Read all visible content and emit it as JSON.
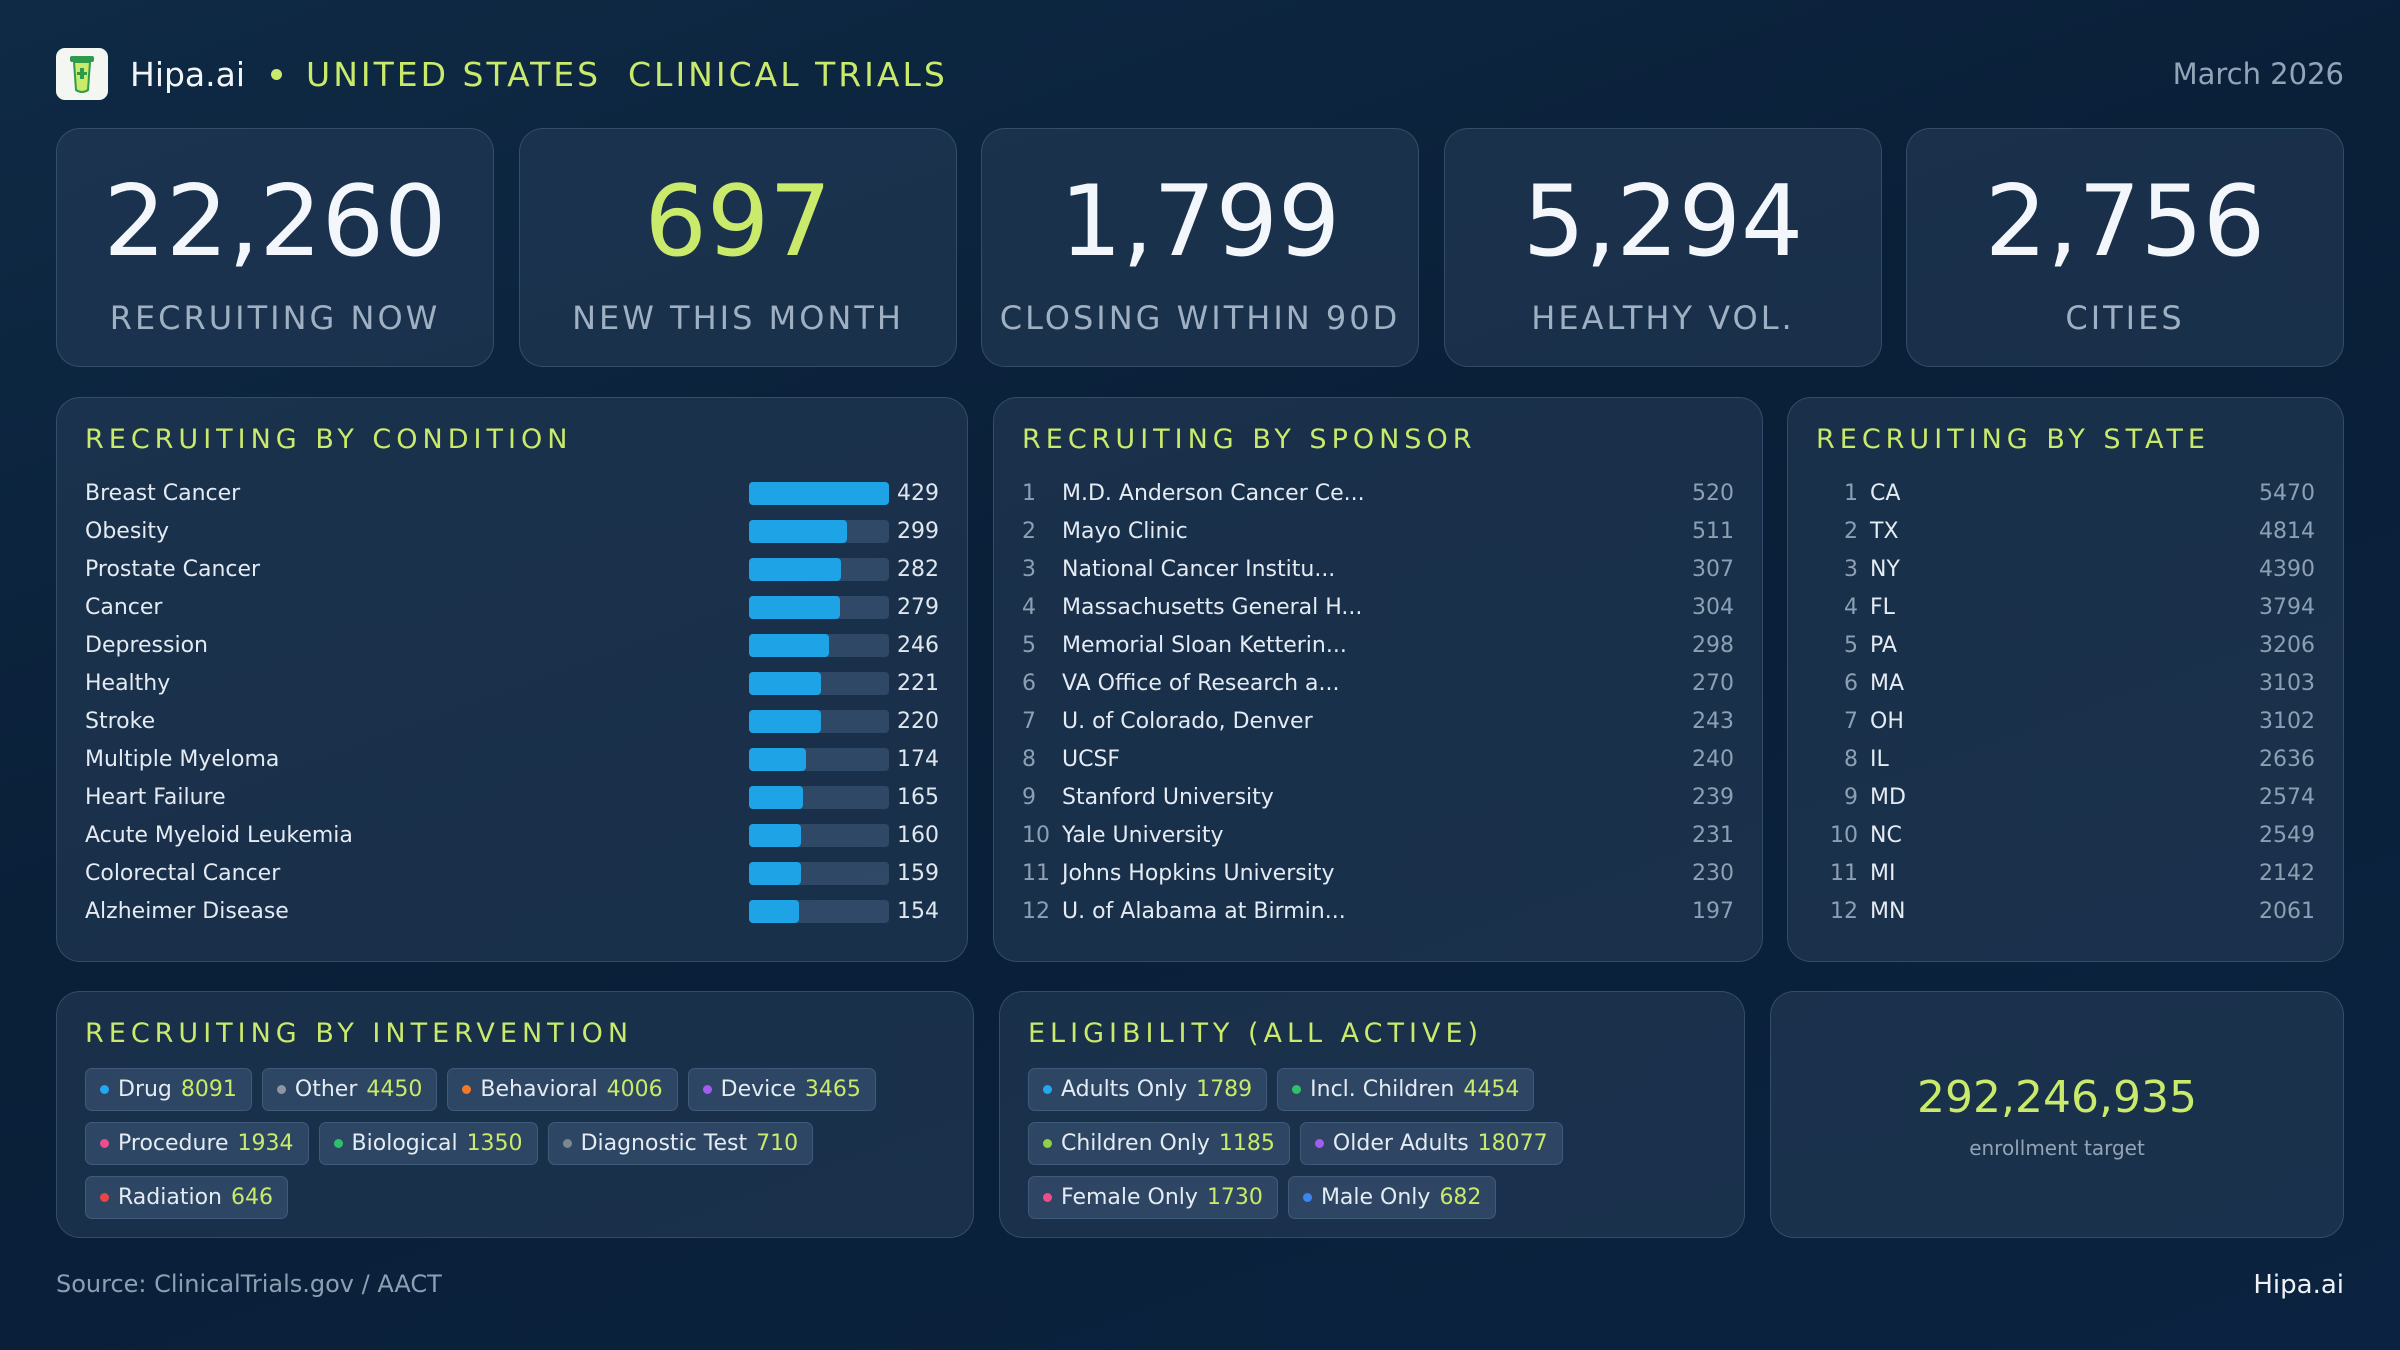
{
  "header": {
    "brand": "Hipa.ai",
    "title": "UNITED STATES  CLINICAL TRIALS",
    "date": "March 2026",
    "logo_icon": "flask-tube-icon"
  },
  "kpis": [
    {
      "value": "22,260",
      "label": "RECRUITING NOW"
    },
    {
      "value": "697",
      "label": "NEW THIS MONTH"
    },
    {
      "value": "1,799",
      "label": "CLOSING WITHIN 90D"
    },
    {
      "value": "5,294",
      "label": "HEALTHY VOL."
    },
    {
      "value": "2,756",
      "label": "CITIES"
    }
  ],
  "condition": {
    "title": "RECRUITING BY CONDITION",
    "bar_color": "#1ea4e6",
    "max": 429,
    "items": [
      {
        "name": "Breast Cancer",
        "value": 429
      },
      {
        "name": "Obesity",
        "value": 299
      },
      {
        "name": "Prostate Cancer",
        "value": 282
      },
      {
        "name": "Cancer",
        "value": 279
      },
      {
        "name": "Depression",
        "value": 246
      },
      {
        "name": "Healthy",
        "value": 221
      },
      {
        "name": "Stroke",
        "value": 220
      },
      {
        "name": "Multiple Myeloma",
        "value": 174
      },
      {
        "name": "Heart Failure",
        "value": 165
      },
      {
        "name": "Acute Myeloid Leukemia",
        "value": 160
      },
      {
        "name": "Colorectal Cancer",
        "value": 159
      },
      {
        "name": "Alzheimer Disease",
        "value": 154
      }
    ]
  },
  "sponsor": {
    "title": "RECRUITING BY SPONSOR",
    "items": [
      {
        "rank": "1",
        "name": "M.D. Anderson Cancer Ce...",
        "value": "520"
      },
      {
        "rank": "2",
        "name": "Mayo Clinic",
        "value": "511"
      },
      {
        "rank": "3",
        "name": "National Cancer Institu...",
        "value": "307"
      },
      {
        "rank": "4",
        "name": "Massachusetts General H...",
        "value": "304"
      },
      {
        "rank": "5",
        "name": "Memorial Sloan Ketterin...",
        "value": "298"
      },
      {
        "rank": "6",
        "name": "VA Office of Research a...",
        "value": "270"
      },
      {
        "rank": "7",
        "name": "U. of Colorado, Denver",
        "value": "243"
      },
      {
        "rank": "8",
        "name": "UCSF",
        "value": "240"
      },
      {
        "rank": "9",
        "name": "Stanford University",
        "value": "239"
      },
      {
        "rank": "10",
        "name": "Yale University",
        "value": "231"
      },
      {
        "rank": "11",
        "name": "Johns Hopkins University",
        "value": "230"
      },
      {
        "rank": "12",
        "name": "U. of Alabama at Birmin...",
        "value": "197"
      }
    ]
  },
  "state": {
    "title": "RECRUITING BY STATE",
    "items": [
      {
        "rank": "1",
        "name": "CA",
        "value": "5470"
      },
      {
        "rank": "2",
        "name": "TX",
        "value": "4814"
      },
      {
        "rank": "3",
        "name": "NY",
        "value": "4390"
      },
      {
        "rank": "4",
        "name": "FL",
        "value": "3794"
      },
      {
        "rank": "5",
        "name": "PA",
        "value": "3206"
      },
      {
        "rank": "6",
        "name": "MA",
        "value": "3103"
      },
      {
        "rank": "7",
        "name": "OH",
        "value": "3102"
      },
      {
        "rank": "8",
        "name": "IL",
        "value": "2636"
      },
      {
        "rank": "9",
        "name": "MD",
        "value": "2574"
      },
      {
        "rank": "10",
        "name": "NC",
        "value": "2549"
      },
      {
        "rank": "11",
        "name": "MI",
        "value": "2142"
      },
      {
        "rank": "12",
        "name": "MN",
        "value": "2061"
      }
    ]
  },
  "intervention": {
    "title": "RECRUITING BY INTERVENTION",
    "items": [
      {
        "name": "Drug",
        "value": "8091",
        "color": "#22a8ee"
      },
      {
        "name": "Other",
        "value": "4450",
        "color": "#8d97a3"
      },
      {
        "name": "Behavioral",
        "value": "4006",
        "color": "#f07a2a"
      },
      {
        "name": "Device",
        "value": "3465",
        "color": "#a35cf0"
      },
      {
        "name": "Procedure",
        "value": "1934",
        "color": "#ec4d8c"
      },
      {
        "name": "Biological",
        "value": "1350",
        "color": "#2fc06a"
      },
      {
        "name": "Diagnostic Test",
        "value": "710",
        "color": "#7c8794"
      },
      {
        "name": "Radiation",
        "value": "646",
        "color": "#e84545"
      }
    ]
  },
  "eligibility": {
    "title": "ELIGIBILITY (ALL ACTIVE)",
    "items": [
      {
        "name": "Adults Only",
        "value": "1789",
        "color": "#22a8ee"
      },
      {
        "name": "Incl. Children",
        "value": "4454",
        "color": "#2fc06a"
      },
      {
        "name": "Children Only",
        "value": "1185",
        "color": "#8fd04a"
      },
      {
        "name": "Older Adults",
        "value": "18077",
        "color": "#a35cf0"
      },
      {
        "name": "Female Only",
        "value": "1730",
        "color": "#ec4d8c"
      },
      {
        "name": "Male Only",
        "value": "682",
        "color": "#3d86f0"
      }
    ]
  },
  "enrollment": {
    "value": "292,246,935",
    "label": "enrollment target"
  },
  "footer": {
    "source": "Source: ClinicalTrials.gov / AACT",
    "brand": "Hipa.ai"
  }
}
